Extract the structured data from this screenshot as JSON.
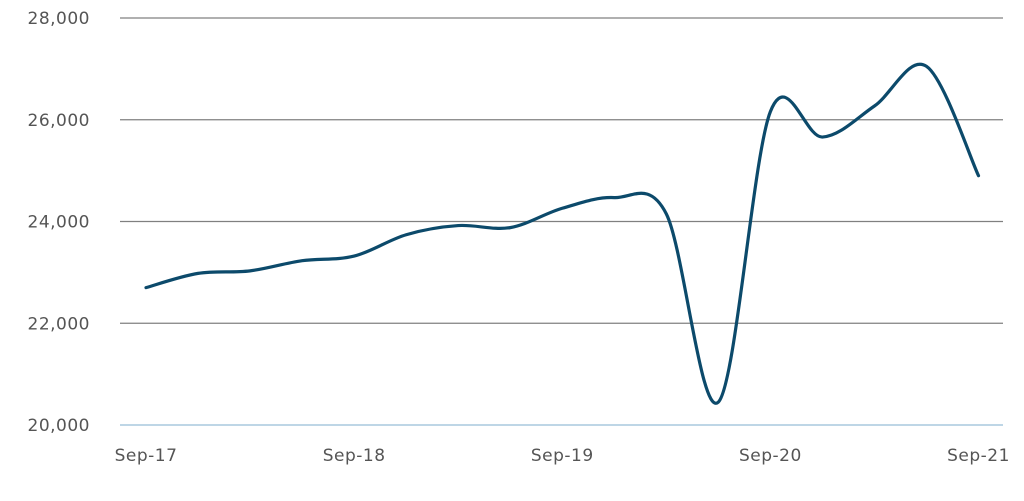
{
  "chart_data": {
    "type": "line",
    "title": "",
    "xlabel": "",
    "ylabel": "",
    "x_tick_labels": [
      "Sep-17",
      "Sep-18",
      "Sep-19",
      "Sep-20",
      "Sep-21"
    ],
    "y_tick_labels": [
      "20,000",
      "22,000",
      "24,000",
      "26,000",
      "28,000"
    ],
    "y_ticks": [
      20000,
      22000,
      24000,
      26000,
      28000
    ],
    "ylim": [
      20000,
      28000
    ],
    "grid": "horizontal",
    "legend": "none",
    "colors": {
      "line": "#0c4a6b",
      "grid": "#808080",
      "baseline": "#a9c9dd"
    },
    "series": [
      {
        "x": [
          "Sep-17",
          "Dec-17",
          "Mar-18",
          "Jun-18",
          "Sep-18",
          "Dec-18",
          "Mar-19",
          "Jun-19",
          "Sep-19",
          "Dec-19",
          "Mar-20",
          "Jun-20",
          "Sep-20",
          "Dec-20",
          "Mar-21",
          "Jun-21",
          "Sep-21"
        ],
        "values": [
          22700,
          22980,
          23030,
          23230,
          23320,
          23740,
          23920,
          23880,
          24260,
          24470,
          24150,
          20450,
          26160,
          25660,
          26270,
          27050,
          24900
        ]
      }
    ]
  }
}
